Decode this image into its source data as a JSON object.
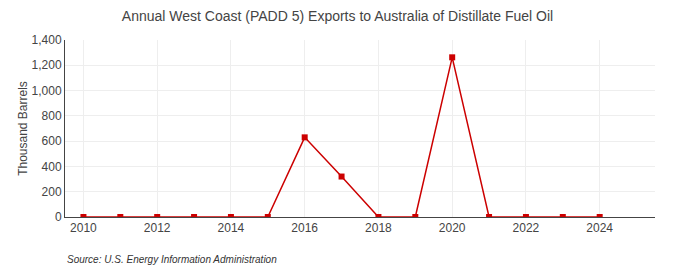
{
  "chart_data": {
    "type": "line",
    "title": "Annual West Coast (PADD 5) Exports to Australia of Distillate Fuel Oil",
    "ylabel": "Thousand Barrels",
    "annotation": "Source: U.S. Energy Information Administration",
    "x": [
      2010,
      2011,
      2012,
      2013,
      2014,
      2015,
      2016,
      2017,
      2018,
      2019,
      2020,
      2021,
      2022,
      2023,
      2024
    ],
    "values": [
      0,
      0,
      0,
      0,
      0,
      0,
      630,
      320,
      0,
      0,
      1263,
      0,
      0,
      0,
      0
    ],
    "color": "#cc0000",
    "marker": "square",
    "line_style": "solid",
    "xlim": [
      2009.5,
      2025.5
    ],
    "xticks": [
      2010,
      2012,
      2014,
      2016,
      2018,
      2020,
      2022,
      2024
    ],
    "ylim": [
      0,
      1400
    ],
    "yticks": [
      0,
      200,
      400,
      600,
      800,
      {
        "value": 1000,
        "label": "1,000"
      },
      {
        "value": 1200,
        "label": "1,200"
      },
      {
        "value": 1400,
        "label": "1,400"
      }
    ],
    "grid": true
  }
}
